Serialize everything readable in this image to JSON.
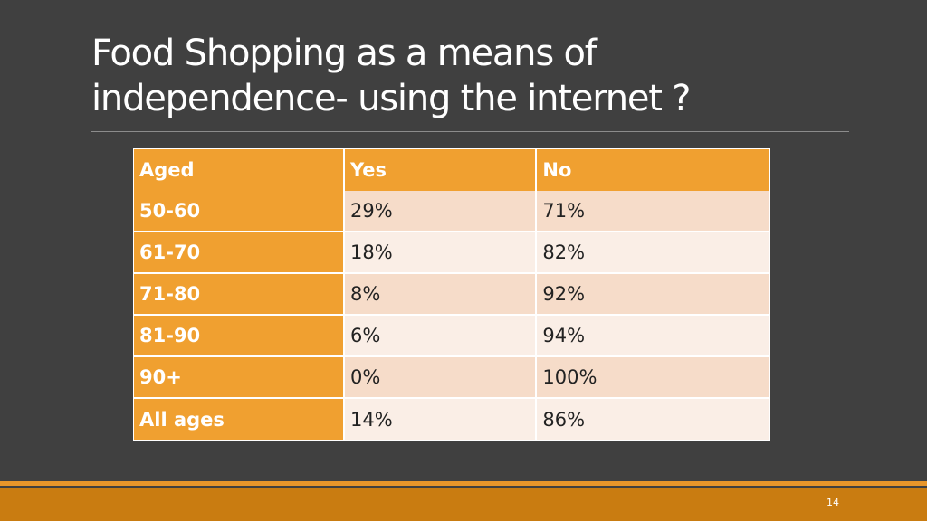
{
  "slide": {
    "title": "Food Shopping as a means of independence- using the internet ?",
    "page_number": "14"
  },
  "table": {
    "headers": [
      "Aged",
      "Yes",
      "No"
    ],
    "rows": [
      {
        "aged": "50-60",
        "yes": "29%",
        "no": "71%"
      },
      {
        "aged": "61-70",
        "yes": "18%",
        "no": "82%"
      },
      {
        "aged": "71-80",
        "yes": "8%",
        "no": "92%"
      },
      {
        "aged": "81-90",
        "yes": "6%",
        "no": "94%"
      },
      {
        "aged": "90+",
        "yes": "0%",
        "no": "100%"
      },
      {
        "aged": "All ages",
        "yes": "14%",
        "no": "86%"
      }
    ]
  },
  "colors": {
    "background": "#404040",
    "header_orange": "#f0a030",
    "row_odd": "#f6dcc9",
    "row_even": "#faeee6",
    "footer_bar": "#c97c11",
    "footer_line": "#e8962a"
  }
}
